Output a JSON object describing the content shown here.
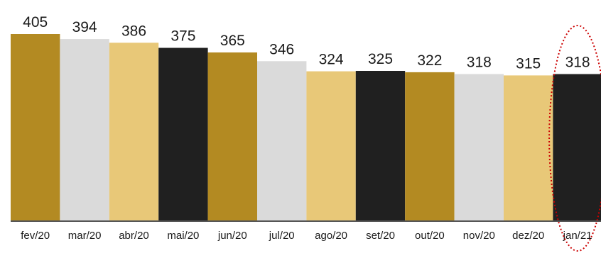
{
  "chart_data": {
    "type": "bar",
    "categories": [
      "fev/20",
      "mar/20",
      "abr/20",
      "mai/20",
      "jun/20",
      "jul/20",
      "ago/20",
      "set/20",
      "out/20",
      "nov/20",
      "dez/20",
      "jan/21"
    ],
    "values": [
      405,
      394,
      386,
      375,
      365,
      346,
      324,
      325,
      322,
      318,
      315,
      318
    ],
    "bar_colors": [
      "#b38a22",
      "#dadada",
      "#e8c878",
      "#202020",
      "#b38a22",
      "#dadada",
      "#e8c878",
      "#202020",
      "#b38a22",
      "#dadada",
      "#e8c878",
      "#202020"
    ],
    "highlight": {
      "category": "jan/21",
      "style": "dotted-ellipse",
      "color": "#cc0000"
    },
    "title": "",
    "xlabel": "",
    "ylabel": "",
    "ylim": [
      0,
      405
    ],
    "grid": false,
    "legend": "none",
    "baseline_color": "#555555"
  }
}
